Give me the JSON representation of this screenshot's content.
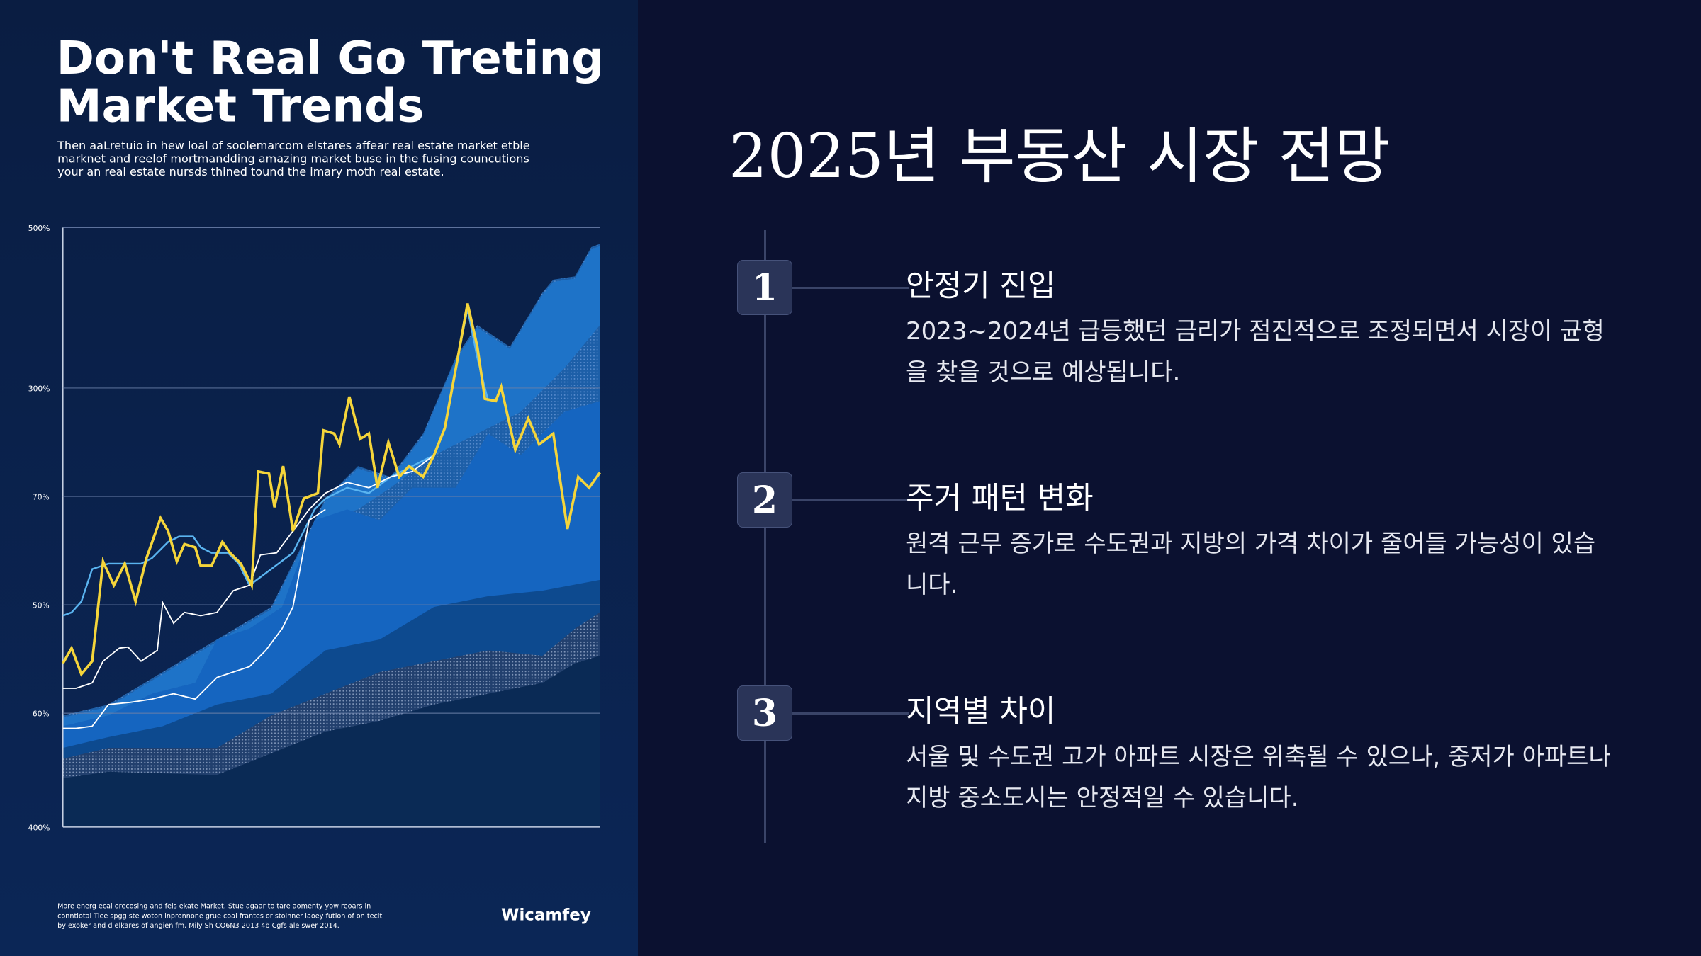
{
  "poster": {
    "title": [
      "Don't Real Go Treting",
      "Market Trends"
    ],
    "description": [
      "Then aaLretuio in hew loal of soolemarcom elstares affear real estate market etble",
      "marknet and reelof mortmandding amazing market buse in the fusing councutions",
      "your an real estate nursds thined tound the imary moth real estate."
    ],
    "y_axis_labels": [
      "500%",
      "300%",
      "70%",
      "50%",
      "60%",
      "400%"
    ],
    "footer": [
      "More energ ecal orecosing and fels ekate Market. Stue agaar to tare aomenty yow reoars in",
      "conntiotal Tiee spgg ste woton inpronnone grue coal frantes or stoinner iaoey fution of on tecit",
      "by exoker and d elkares of angien fm, Mily Sh CO6N3 2013 4b Cgfs ale swer 2014."
    ],
    "logo": "Wicamfey"
  },
  "slide": {
    "title": "2025년 부동산 시장 전망",
    "items": [
      {
        "number": "1",
        "heading": "안정기 진입",
        "body": "2023~2024년 급등했던 금리가 점진적으로 조정되면서 시장이 균형을 찾을 것으로 예상됩니다."
      },
      {
        "number": "2",
        "heading": "주거 패턴 변화",
        "body": "원격 근무 증가로 수도권과 지방의 가격 차이가 줄어들 가능성이 있습니다."
      },
      {
        "number": "3",
        "heading": "지역별 차이",
        "body": "서울 및 수도권 고가 아파트 시장은 위축될 수 있으나, 중저가 아파트나 지방 중소도시는 안정적일 수 있습니다."
      }
    ]
  }
}
